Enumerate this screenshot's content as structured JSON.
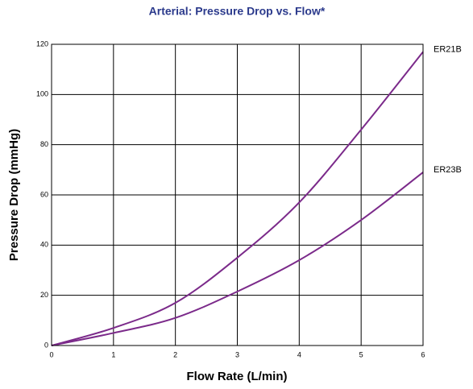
{
  "chart_data": {
    "type": "line",
    "title": "Arterial: Pressure Drop vs. Flow*",
    "x_label": "Flow Rate (L/min)",
    "y_label": "Pressure Drop (mmHg)",
    "x": [
      0,
      1,
      2,
      3,
      4,
      5,
      6
    ],
    "series": [
      {
        "name": "ER21B",
        "color": "#7b2a8a",
        "values": [
          0,
          7,
          17,
          35,
          57,
          86,
          117
        ]
      },
      {
        "name": "ER23B",
        "color": "#7b2a8a",
        "values": [
          0,
          5,
          11,
          21.5,
          34,
          50,
          69
        ]
      }
    ],
    "xlim": [
      0,
      6
    ],
    "xticks": [
      0,
      1,
      2,
      3,
      4,
      5,
      6
    ],
    "ylim": [
      0,
      120
    ],
    "yticks": [
      0,
      20,
      40,
      60,
      80,
      100,
      120
    ],
    "grid": true
  }
}
